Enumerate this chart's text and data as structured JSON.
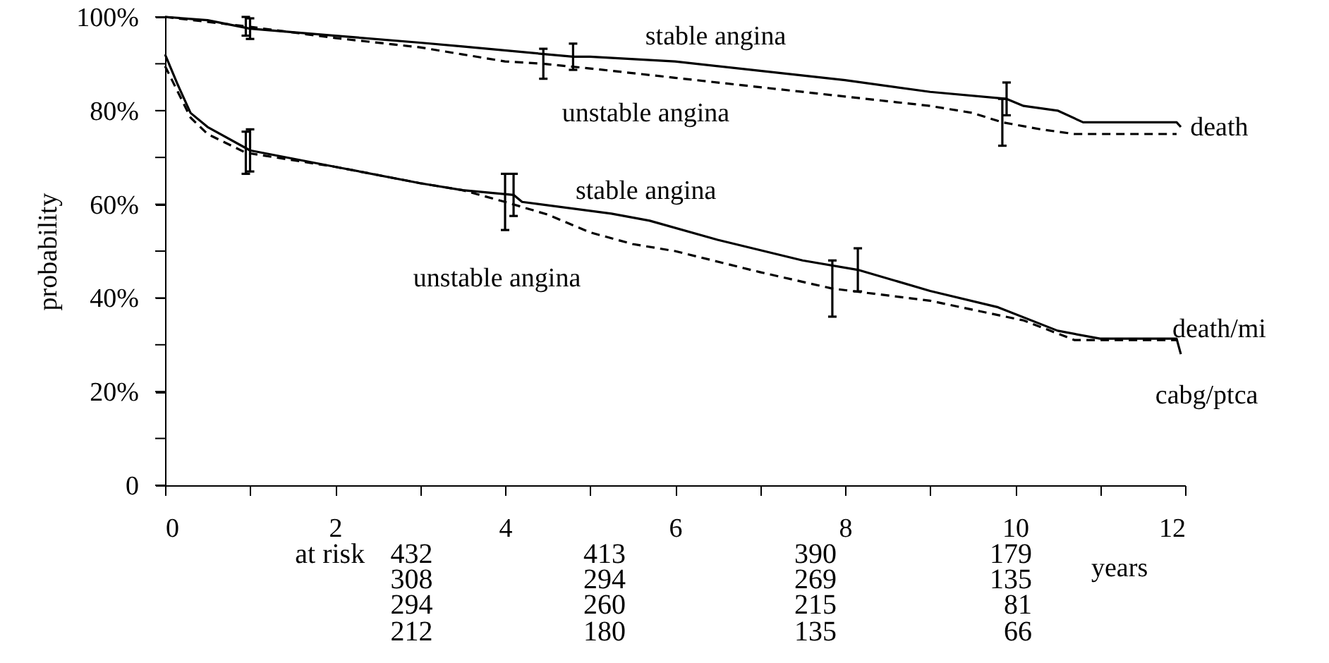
{
  "chart_data": {
    "type": "line",
    "xlabel": "years",
    "ylabel": "probability",
    "xlim": [
      0,
      12
    ],
    "xticks": [
      0,
      {
        "value": 1,
        "label": null
      },
      2,
      {
        "value": 3,
        "label": null
      },
      4,
      {
        "value": 5,
        "label": null
      },
      6,
      {
        "value": 7,
        "label": null
      },
      8,
      {
        "value": 9,
        "label": null
      },
      10,
      {
        "value": 11,
        "label": null
      },
      12
    ],
    "ylim": [
      0,
      100
    ],
    "yticks": [
      {
        "value": 0,
        "label": "0"
      },
      {
        "value": 10,
        "label": null
      },
      {
        "value": 20,
        "label": "20%"
      },
      {
        "value": 30,
        "label": null
      },
      {
        "value": 40,
        "label": "40%"
      },
      {
        "value": 50,
        "label": null
      },
      {
        "value": 60,
        "label": "60%"
      },
      {
        "value": 70,
        "label": null
      },
      {
        "value": 80,
        "label": "80%"
      },
      {
        "value": 90,
        "label": null
      },
      {
        "value": 100,
        "label": "100%"
      }
    ],
    "series": [
      {
        "color": "#000000",
        "line_style": "solid",
        "x": [
          0,
          0.5,
          1,
          2,
          3,
          3.5,
          4.5,
          4.8,
          5,
          6,
          7,
          8,
          9,
          9.9,
          10.1,
          10.5,
          10.8,
          11.9,
          11.95
        ],
        "values": [
          100,
          99.3,
          97.5,
          96,
          94.5,
          93.7,
          92,
          91.5,
          91.5,
          90.5,
          88.5,
          86.5,
          84,
          82.5,
          81,
          80,
          77.5,
          77.5,
          76.5
        ],
        "errors": [
          null,
          null,
          2.2,
          null,
          null,
          null,
          null,
          2.8,
          null,
          null,
          null,
          null,
          null,
          3.5,
          null,
          null,
          null,
          null,
          null
        ]
      },
      {
        "color": "#000000",
        "line_style": "dashed",
        "x": [
          0,
          0.95,
          2,
          3,
          3.5,
          4,
          4.45,
          5,
          6,
          7,
          8,
          9,
          9.5,
          9.85,
          10.3,
          10.7,
          11.9
        ],
        "values": [
          100,
          98,
          95.5,
          93.5,
          92,
          90.5,
          90,
          89,
          87,
          85,
          83,
          81,
          79.5,
          77.5,
          76,
          75,
          75
        ],
        "errors": [
          null,
          2,
          null,
          null,
          null,
          null,
          3.2,
          null,
          null,
          null,
          null,
          null,
          null,
          5,
          null,
          null,
          null
        ]
      },
      {
        "color": "#000000",
        "line_style": "solid",
        "x": [
          0,
          0.15,
          0.3,
          0.5,
          1,
          2,
          3,
          3.5,
          4.1,
          4.2,
          5.25,
          5.7,
          6.5,
          7.5,
          8.15,
          9,
          9.8,
          10.5,
          11,
          11.9,
          11.95
        ],
        "values": [
          92,
          85.5,
          79.5,
          76.5,
          71.5,
          68,
          64.5,
          63,
          62,
          60.5,
          58,
          56.5,
          52.4,
          48,
          46,
          41.5,
          38,
          33,
          31.3,
          31.3,
          28
        ],
        "errors": [
          null,
          null,
          null,
          null,
          4.5,
          null,
          null,
          null,
          4.5,
          null,
          null,
          null,
          null,
          null,
          4.6,
          null,
          null,
          null,
          null,
          null,
          null
        ]
      },
      {
        "color": "#000000",
        "line_style": "dashed",
        "x": [
          0,
          0.15,
          0.3,
          0.5,
          0.95,
          2,
          3,
          3.5,
          4,
          4.5,
          5,
          5.5,
          6,
          7,
          7.85,
          9,
          10.1,
          10.7,
          11.9
        ],
        "values": [
          89.5,
          84,
          78.5,
          75,
          71,
          68,
          64.5,
          63,
          60.5,
          57.8,
          54,
          51.5,
          50,
          45.5,
          42,
          39.4,
          35.2,
          31,
          31
        ],
        "errors": [
          null,
          null,
          null,
          null,
          4.5,
          null,
          null,
          null,
          6,
          null,
          null,
          null,
          null,
          null,
          6,
          null,
          null,
          null,
          null
        ]
      }
    ],
    "annotations": [
      "stable angina",
      "unstable angina",
      "death",
      "stable angina",
      "unstable angina",
      "death/mi",
      "cabg/ptca",
      "at risk",
      "432",
      "308",
      "294",
      "212",
      "413",
      "294",
      "260",
      "180",
      "390",
      "269",
      "215",
      "135",
      "179",
      "135",
      "81",
      "66"
    ]
  }
}
